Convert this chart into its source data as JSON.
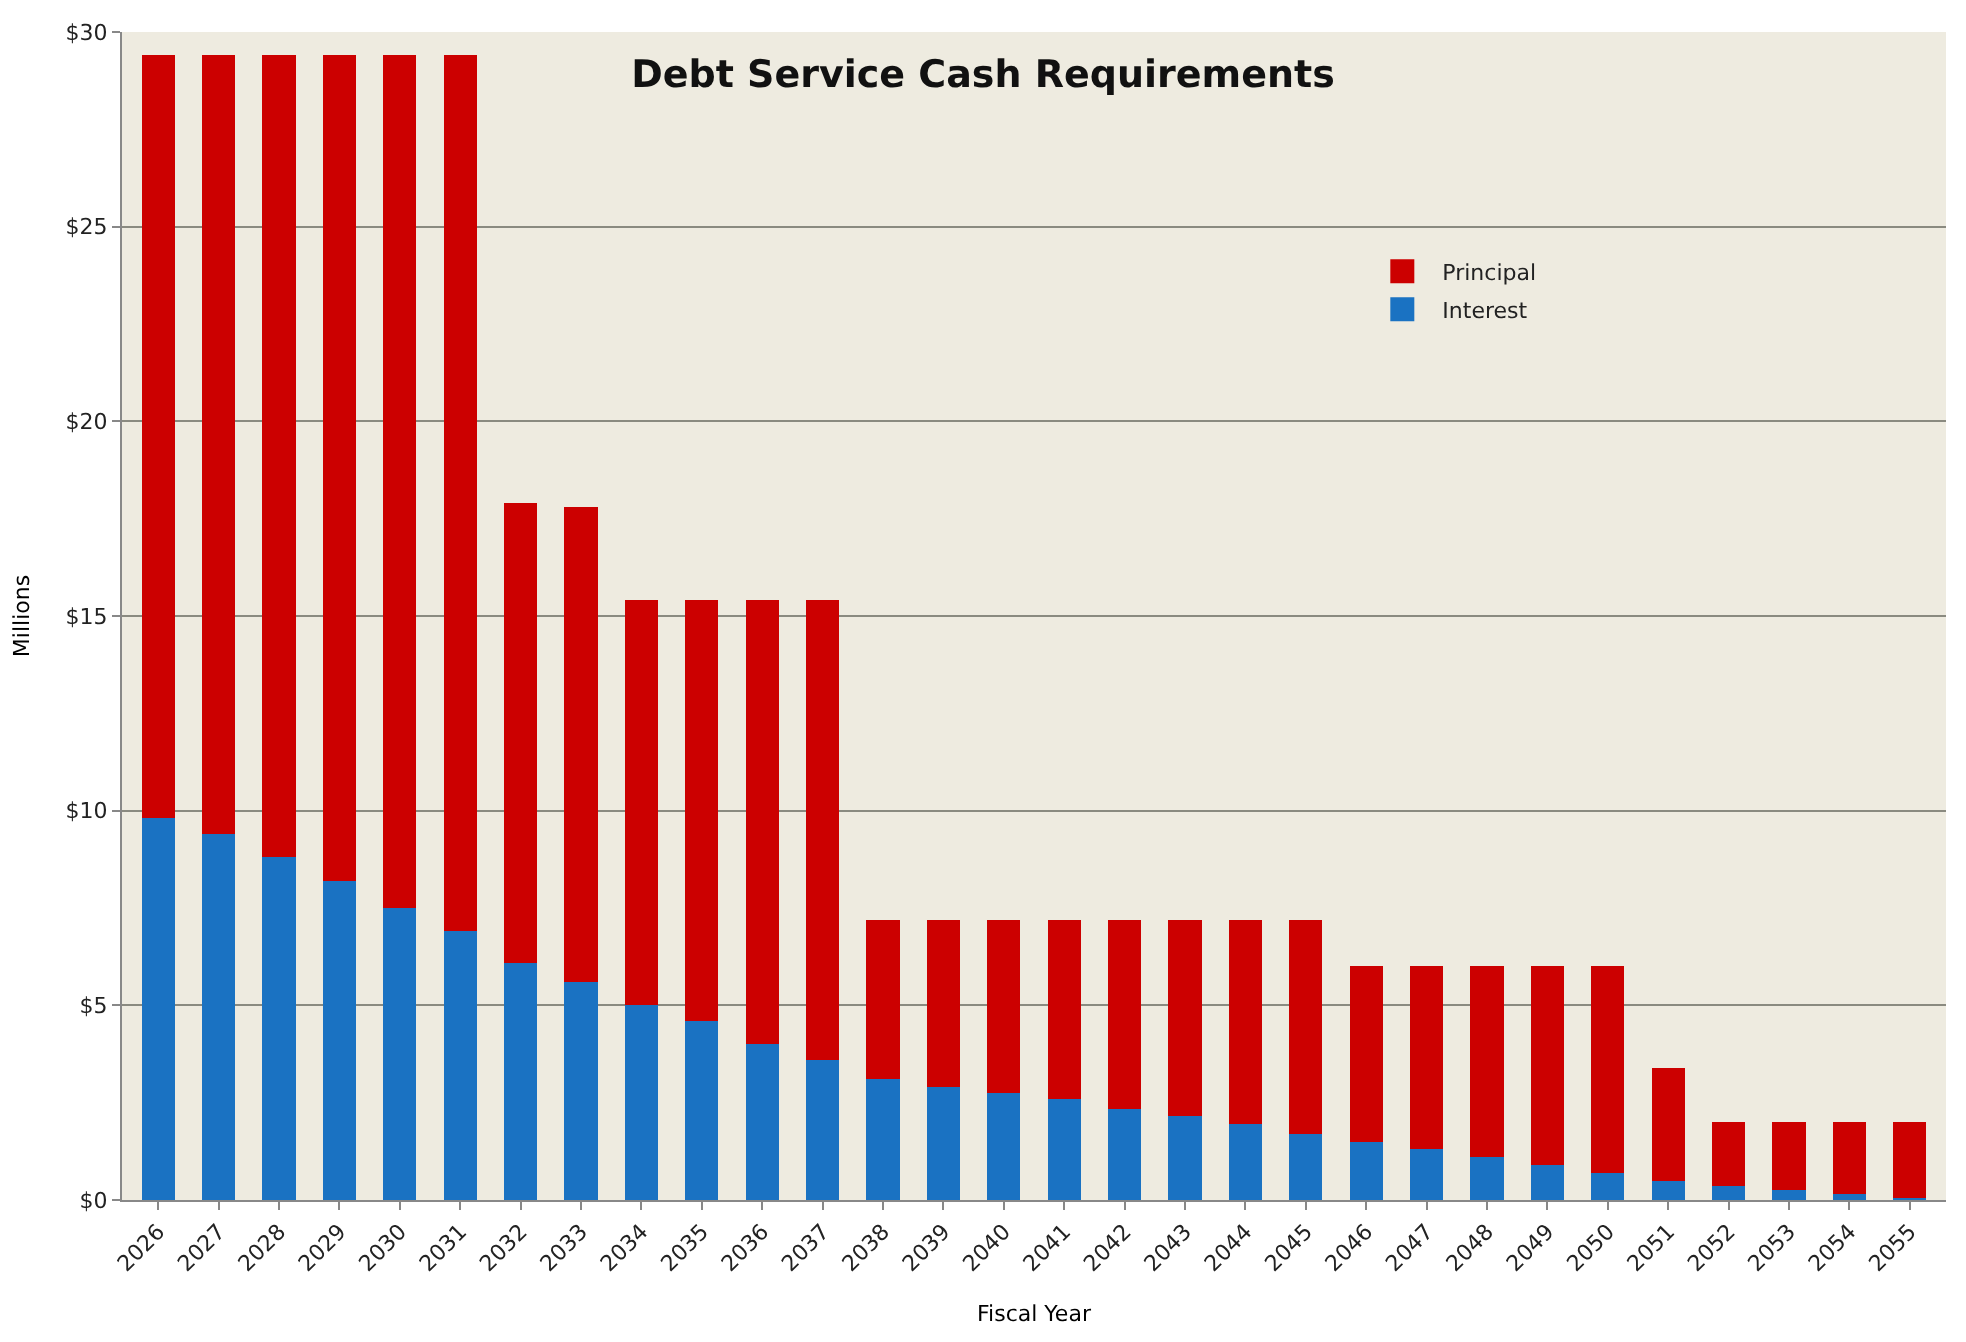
{
  "chart_data": {
    "type": "bar",
    "title": "Debt Service Cash Requirements",
    "xlabel": "Fiscal Year",
    "ylabel": "Millions",
    "categories": [
      "2026",
      "2027",
      "2028",
      "2029",
      "2030",
      "2031",
      "2032",
      "2033",
      "2034",
      "2035",
      "2036",
      "2037",
      "2038",
      "2039",
      "2040",
      "2041",
      "2042",
      "2043",
      "2044",
      "2045",
      "2046",
      "2047",
      "2048",
      "2049",
      "2050",
      "2051",
      "2052",
      "2053",
      "2054",
      "2055"
    ],
    "stacked": true,
    "series": [
      {
        "name": "Interest",
        "color": "#1a72c2",
        "values": [
          9.8,
          9.4,
          8.8,
          8.2,
          7.5,
          6.9,
          6.1,
          5.6,
          5.0,
          4.6,
          4.0,
          3.6,
          3.1,
          2.9,
          2.75,
          2.6,
          2.35,
          2.15,
          1.95,
          1.7,
          1.5,
          1.3,
          1.1,
          0.9,
          0.7,
          0.5,
          0.35,
          0.25,
          0.15,
          0.05
        ]
      },
      {
        "name": "Principal",
        "color": "#cc0000",
        "values": [
          19.6,
          20.0,
          20.6,
          21.2,
          21.9,
          22.5,
          11.8,
          12.2,
          10.4,
          10.8,
          11.4,
          11.8,
          4.1,
          4.3,
          4.45,
          4.6,
          4.85,
          5.05,
          5.25,
          5.5,
          4.5,
          4.7,
          4.9,
          5.1,
          5.3,
          2.9,
          1.65,
          1.75,
          1.85,
          1.95
        ]
      }
    ],
    "ylim": [
      0,
      30
    ],
    "yticks": [
      {
        "value": 0,
        "label": "$0"
      },
      {
        "value": 5,
        "label": "$5"
      },
      {
        "value": 10,
        "label": "$10"
      },
      {
        "value": 15,
        "label": "$15"
      },
      {
        "value": 20,
        "label": "$20"
      },
      {
        "value": 25,
        "label": "$25"
      },
      {
        "value": 30,
        "label": "$30"
      }
    ],
    "grid": "y",
    "legend": "top right"
  }
}
